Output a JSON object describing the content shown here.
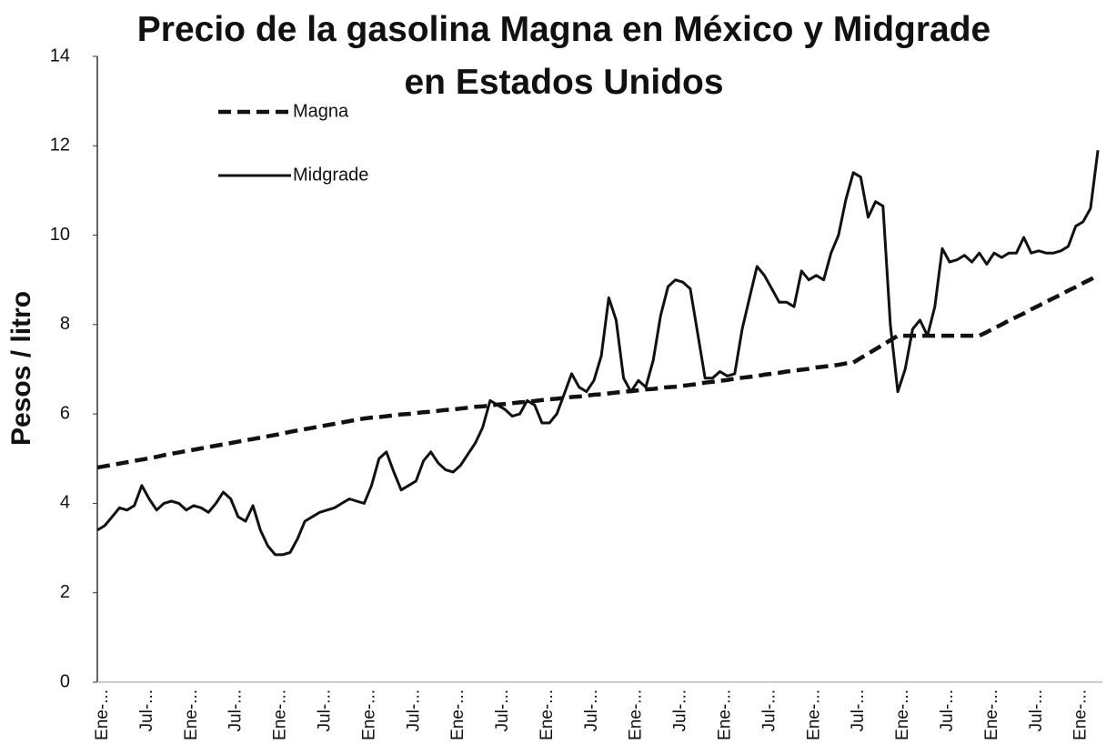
{
  "chart_data": {
    "type": "line",
    "title": "Precio de la gasolina Magna en México y Midgrade en Estados Unidos",
    "y_label": "Pesos / litro",
    "ylim": [
      0,
      14
    ],
    "yticks": [
      0,
      2,
      4,
      6,
      8,
      10,
      12,
      14
    ],
    "grid": false,
    "legend": "upper left",
    "categories": [
      "Ene-...",
      null,
      null,
      null,
      null,
      null,
      "Jul-...",
      null,
      null,
      null,
      null,
      null,
      "Ene-...",
      null,
      null,
      null,
      null,
      null,
      "Jul-...",
      null,
      null,
      null,
      null,
      null,
      "Ene-...",
      null,
      null,
      null,
      null,
      null,
      "Jul-...",
      null,
      null,
      null,
      null,
      null,
      "Ene-...",
      null,
      null,
      null,
      null,
      null,
      "Jul-...",
      null,
      null,
      null,
      null,
      null,
      "Ene-...",
      null,
      null,
      null,
      null,
      null,
      "Jul-...",
      null,
      null,
      null,
      null,
      null,
      "Ene-...",
      null,
      null,
      null,
      null,
      null,
      "Jul-...",
      null,
      null,
      null,
      null,
      null,
      "Ene-...",
      null,
      null,
      null,
      null,
      null,
      "Jul-...",
      null,
      null,
      null,
      null,
      null,
      "Ene-...",
      null,
      null,
      null,
      null,
      null,
      "Jul-...",
      null,
      null,
      null,
      null,
      null,
      "Ene-...",
      null,
      null,
      null,
      null,
      null,
      "Jul-...",
      null,
      null,
      null,
      null,
      null,
      "Ene-...",
      null,
      null,
      null,
      null,
      null,
      "Jul-...",
      null,
      null,
      null,
      null,
      null,
      "Ene-...",
      null,
      null,
      null,
      null,
      null,
      "Jul-...",
      null,
      null,
      null,
      null,
      null,
      "Ene-...",
      null,
      null,
      null
    ],
    "series": [
      {
        "name": "Magna",
        "color": "#111111",
        "style": "dashed",
        "values": [
          4.8,
          4.83,
          4.86,
          4.89,
          4.92,
          4.95,
          4.98,
          5.01,
          5.04,
          5.08,
          5.11,
          5.14,
          5.17,
          5.2,
          5.23,
          5.26,
          5.29,
          5.32,
          5.35,
          5.38,
          5.41,
          5.44,
          5.47,
          5.5,
          5.53,
          5.56,
          5.6,
          5.63,
          5.66,
          5.69,
          5.72,
          5.75,
          5.78,
          5.81,
          5.84,
          5.87,
          5.9,
          5.92,
          5.93,
          5.95,
          5.97,
          5.99,
          6.0,
          6.02,
          6.04,
          6.05,
          6.07,
          6.09,
          6.1,
          6.12,
          6.14,
          6.16,
          6.17,
          6.19,
          6.21,
          6.22,
          6.24,
          6.26,
          6.27,
          6.29,
          6.31,
          6.33,
          6.34,
          6.36,
          6.38,
          6.39,
          6.41,
          6.43,
          6.44,
          6.46,
          6.48,
          6.5,
          6.51,
          6.53,
          6.55,
          6.56,
          6.58,
          6.6,
          6.61,
          6.63,
          6.65,
          6.67,
          6.7,
          6.72,
          6.74,
          6.76,
          6.79,
          6.81,
          6.83,
          6.85,
          6.88,
          6.9,
          6.92,
          6.95,
          6.97,
          6.99,
          7.01,
          7.04,
          7.06,
          7.08,
          7.1,
          7.13,
          7.15,
          7.25,
          7.35,
          7.45,
          7.55,
          7.65,
          7.75,
          7.75,
          7.75,
          7.75,
          7.75,
          7.75,
          7.75,
          7.75,
          7.75,
          7.75,
          7.75,
          7.75,
          7.83,
          7.92,
          8.0,
          8.09,
          8.17,
          8.25,
          8.34,
          8.42,
          8.51,
          8.59,
          8.67,
          8.76,
          8.84,
          8.93,
          9.01,
          9.1
        ]
      },
      {
        "name": "Midgrade",
        "color": "#111111",
        "style": "solid",
        "values": [
          3.4,
          3.5,
          3.7,
          3.9,
          3.85,
          3.95,
          4.4,
          4.1,
          3.85,
          4.0,
          4.05,
          4.0,
          3.85,
          3.95,
          3.9,
          3.8,
          4.0,
          4.25,
          4.1,
          3.7,
          3.6,
          3.95,
          3.4,
          3.05,
          2.85,
          2.85,
          2.9,
          3.2,
          3.6,
          3.7,
          3.8,
          3.85,
          3.9,
          4.0,
          4.1,
          4.05,
          4.0,
          4.4,
          5.0,
          5.15,
          4.7,
          4.3,
          4.4,
          4.5,
          4.95,
          5.15,
          4.9,
          4.75,
          4.7,
          4.85,
          5.1,
          5.35,
          5.7,
          6.3,
          6.2,
          6.1,
          5.95,
          6.0,
          6.3,
          6.2,
          5.8,
          5.8,
          6.0,
          6.45,
          6.9,
          6.6,
          6.5,
          6.75,
          7.3,
          8.6,
          8.1,
          6.8,
          6.5,
          6.75,
          6.6,
          7.2,
          8.2,
          8.85,
          9.0,
          8.95,
          8.8,
          7.8,
          6.8,
          6.8,
          6.95,
          6.85,
          6.9,
          7.9,
          8.6,
          9.3,
          9.1,
          8.8,
          8.5,
          8.5,
          8.4,
          9.2,
          9.0,
          9.1,
          9.0,
          9.6,
          10.0,
          10.8,
          11.4,
          11.3,
          10.4,
          10.75,
          10.65,
          8.0,
          6.5,
          7.0,
          7.9,
          8.1,
          7.75,
          8.4,
          9.7,
          9.4,
          9.45,
          9.55,
          9.4,
          9.6,
          9.35,
          9.6,
          9.5,
          9.6,
          9.6,
          9.95,
          9.6,
          9.65,
          9.6,
          9.6,
          9.65,
          9.75,
          10.2,
          10.3,
          10.6,
          11.9
        ]
      }
    ]
  }
}
